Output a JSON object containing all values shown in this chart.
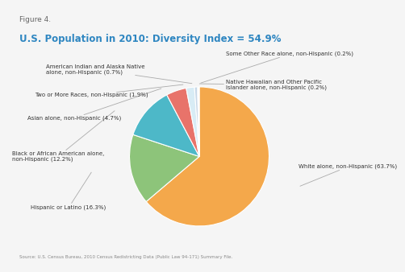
{
  "figure_label": "Figure 4.",
  "title": "U.S. Population in 2010: Diversity Index = 54.9%",
  "source": "Source: U.S. Census Bureau, 2010 Census Redistricting Data (Public Law 94-171) Summary File.",
  "slices": [
    {
      "label": "White alone, non-Hispanic (63.7%)",
      "value": 63.7,
      "color": "#F4A84B"
    },
    {
      "label": "Hispanic or Latino (16.3%)",
      "value": 16.3,
      "color": "#8DC47A"
    },
    {
      "label": "Black or African American alone,\nnon-Hispanic (12.2%)",
      "value": 12.2,
      "color": "#4DB8C8"
    },
    {
      "label": "Asian alone, non-Hispanic (4.7%)",
      "value": 4.7,
      "color": "#E8736A"
    },
    {
      "label": "Two or More Races, non-Hispanic (1.9%)",
      "value": 1.9,
      "color": "#D8ECF5"
    },
    {
      "label": "American Indian and Alaska Native\nalone, non-Hispanic (0.7%)",
      "value": 0.7,
      "color": "#C8D8E8"
    },
    {
      "label": "Native Hawaiian and Other Pacific\nIslander alone, non-Hispanic (0.2%)",
      "value": 0.2,
      "color": "#4A8A9A"
    },
    {
      "label": "Some Other Race alone, non-Hispanic (0.2%)",
      "value": 0.2,
      "color": "#A8C8D0"
    }
  ],
  "title_color": "#2E86C1",
  "figure_label_color": "#666666",
  "source_color": "#888888",
  "background_color": "#F5F5F5",
  "label_font_size": 5.0,
  "line_color": "#AAAAAA"
}
